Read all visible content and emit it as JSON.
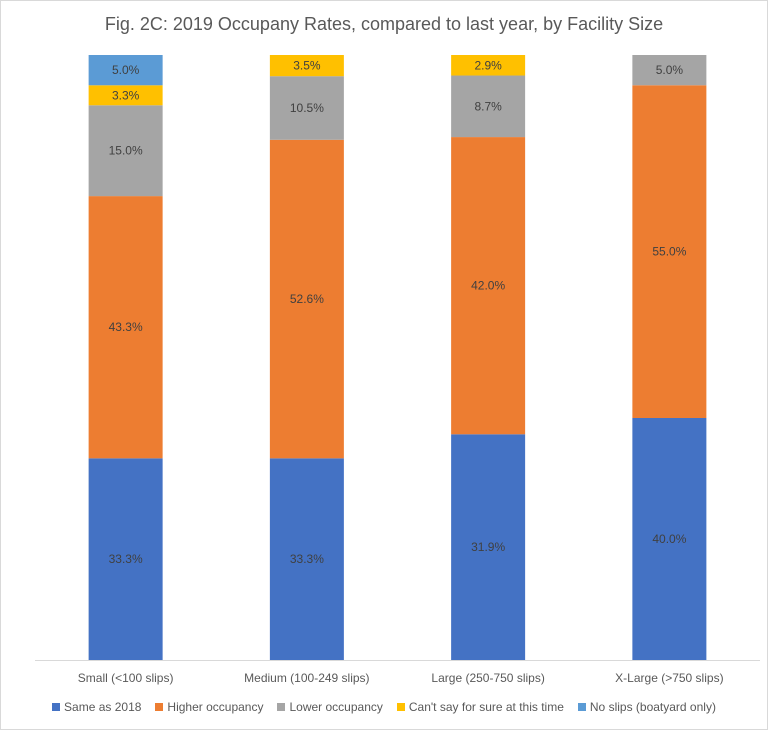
{
  "chart_data": {
    "type": "bar",
    "stacked": "percent",
    "title": "Fig. 2C: 2019 Occupany Rates, compared to last year, by Facility Size",
    "categories": [
      "Small (<100 slips)",
      "Medium (100-249 slips)",
      "Large (250-750 slips)",
      "X-Large (>750 slips)"
    ],
    "series": [
      {
        "name": "Same as 2018",
        "color": "#4472c4",
        "values": [
          33.3,
          33.3,
          31.9,
          40.0
        ]
      },
      {
        "name": "Higher occupancy",
        "color": "#ed7d31",
        "values": [
          43.3,
          52.6,
          42.0,
          55.0
        ]
      },
      {
        "name": "Lower occupancy",
        "color": "#a5a5a5",
        "values": [
          15.0,
          10.5,
          8.7,
          5.0
        ]
      },
      {
        "name": "Can't say for sure at this time",
        "color": "#ffc000",
        "values": [
          3.3,
          3.5,
          2.9,
          null
        ]
      },
      {
        "name": "No slips (boatyard only)",
        "color": "#5b9bd5",
        "values": [
          5.0,
          null,
          null,
          null
        ]
      }
    ],
    "data_label_suffix": "%",
    "xlabel": "",
    "ylabel": "",
    "grid": false,
    "legend": "bottom"
  }
}
